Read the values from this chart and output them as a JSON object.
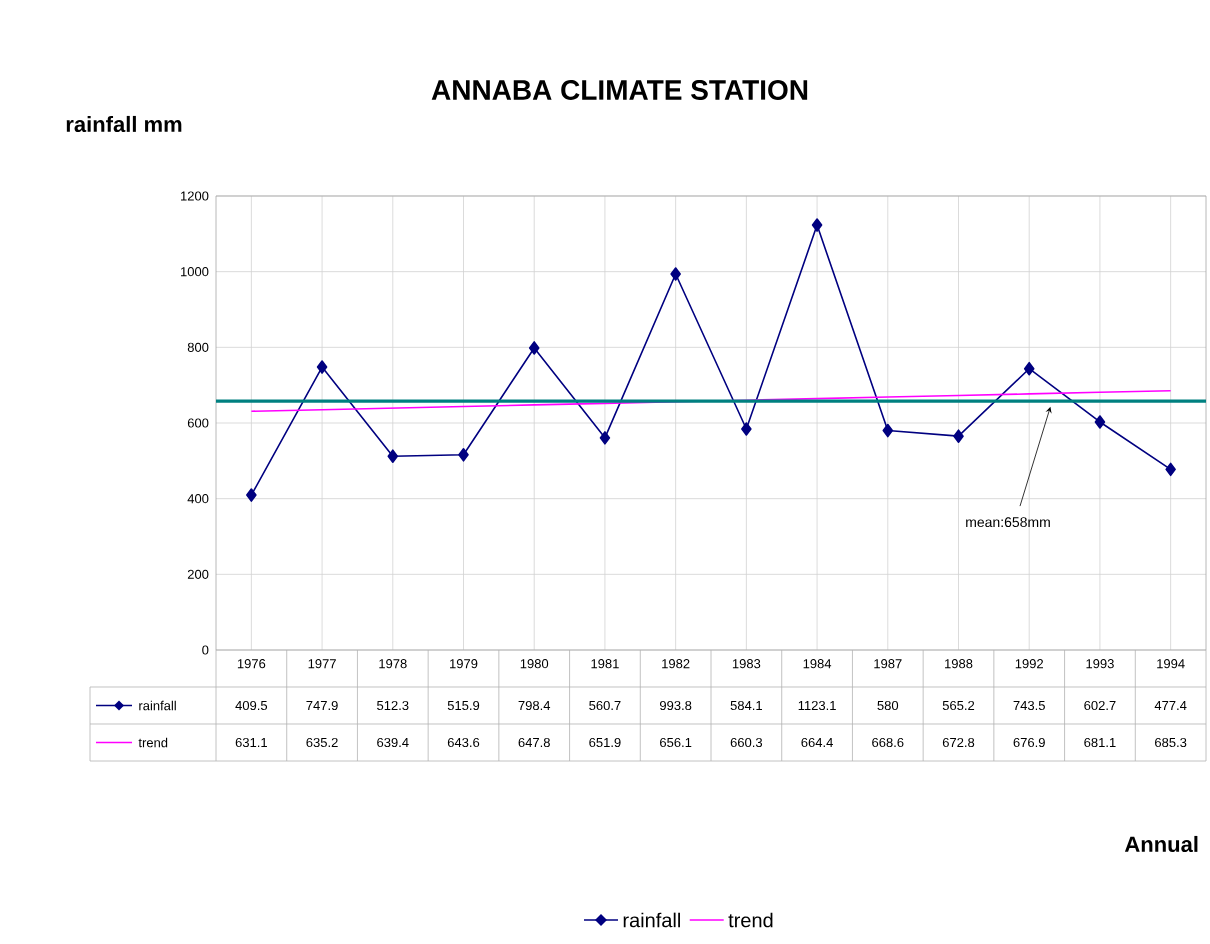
{
  "chart_data": {
    "type": "line",
    "title": "ANNABA CLIMATE STATION",
    "ylabel": "rainfall mm",
    "annotations": [
      "Annual"
    ],
    "categories": [
      "1976",
      "1977",
      "1978",
      "1979",
      "1980",
      "1981",
      "1982",
      "1983",
      "1984",
      "1987",
      "1988",
      "1992",
      "1993",
      "1994"
    ],
    "series": [
      {
        "name": "rainfall",
        "color": "#000080",
        "marker": "diamond",
        "values": [
          409.5,
          747.9,
          512.3,
          515.9,
          798.4,
          560.7,
          993.8,
          584.1,
          1123.1,
          580,
          565.2,
          743.5,
          602.7,
          477.4
        ]
      },
      {
        "name": "trend",
        "color": "#ff00ff",
        "marker": "none",
        "values": [
          631.1,
          635.2,
          639.4,
          643.6,
          647.8,
          651.9,
          656.1,
          660.3,
          664.4,
          668.6,
          672.8,
          676.9,
          681.1,
          685.3
        ]
      }
    ],
    "ylim": [
      0,
      1200
    ],
    "yticks": [
      0,
      200,
      400,
      600,
      800,
      1000,
      1200
    ],
    "ref_lines": [
      {
        "axis": "y",
        "value": 658,
        "label": "mean:658mm",
        "color": "#008080"
      }
    ],
    "grid": true,
    "legend": "bottom",
    "data_labels": true
  }
}
